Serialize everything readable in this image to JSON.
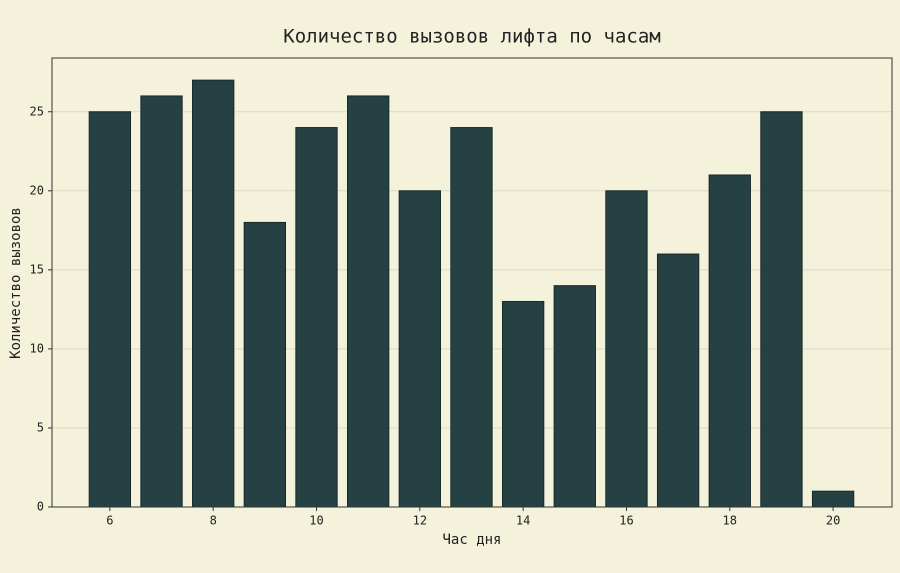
{
  "chart_data": {
    "type": "bar",
    "title": "Количество вызовов лифта по часам",
    "x_label": "Час дня",
    "y_label": "Количество вызовов",
    "x": [
      6,
      7,
      8,
      9,
      10,
      11,
      12,
      13,
      14,
      15,
      16,
      17,
      18,
      19,
      20
    ],
    "values": [
      25,
      26,
      27,
      18,
      24,
      26,
      20,
      24,
      13,
      14,
      20,
      16,
      21,
      25,
      1
    ],
    "color": "#264144",
    "xlim": [
      4.88,
      21.14
    ],
    "xticks": [
      6,
      8,
      10,
      12,
      14,
      16,
      18,
      20
    ],
    "ylim": [
      0,
      28.4
    ],
    "yticks": [
      0,
      5,
      10,
      15,
      20,
      25
    ],
    "grid": true
  }
}
